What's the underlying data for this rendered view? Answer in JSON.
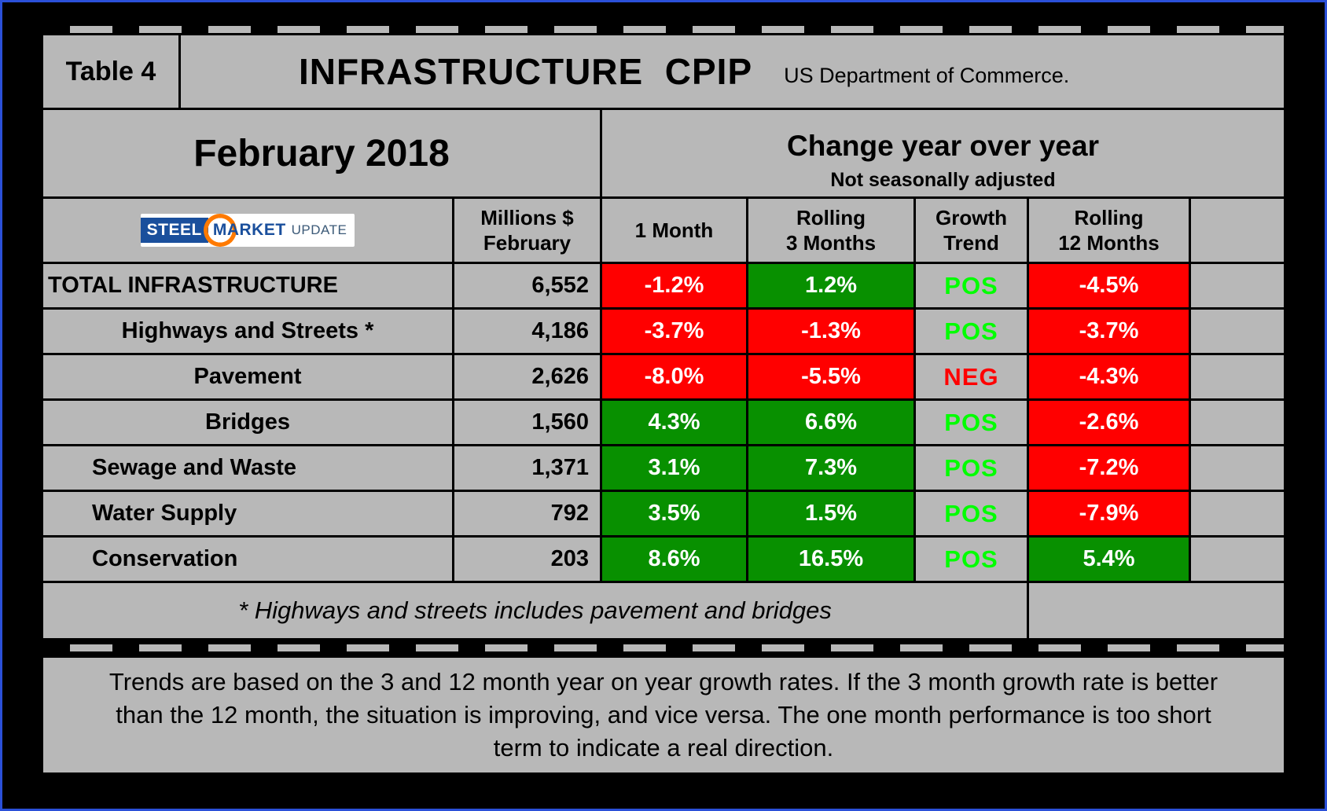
{
  "title_bar": {
    "table_label": "Table 4",
    "title": "INFRASTRUCTURE  CPIP",
    "subtitle": "US Department of Commerce."
  },
  "period": {
    "month": "February 2018",
    "change_header": "Change year over year",
    "change_subheader": "Not seasonally adjusted"
  },
  "logo": {
    "steel": "STEEL",
    "market": "MARKET",
    "update": "UPDATE"
  },
  "headers": {
    "millions": "Millions $\nFebruary",
    "one_month": "1 Month",
    "rolling3": "Rolling\n3 Months",
    "growth": "Growth\nTrend",
    "rolling12": "Rolling\n12 Months"
  },
  "rows": [
    {
      "category": "TOTAL INFRASTRUCTURE",
      "millions": "6,552",
      "one_month": "-1.2%",
      "one_month_tone": "neg",
      "rolling3": "1.2%",
      "rolling3_tone": "pos",
      "trend": "POS",
      "trend_tone": "pos",
      "rolling12": "-4.5%",
      "rolling12_tone": "neg"
    },
    {
      "category": "Highways and Streets *",
      "millions": "4,186",
      "one_month": "-3.7%",
      "one_month_tone": "neg",
      "rolling3": "-1.3%",
      "rolling3_tone": "neg",
      "trend": "POS",
      "trend_tone": "pos",
      "rolling12": "-3.7%",
      "rolling12_tone": "neg"
    },
    {
      "category": "Pavement",
      "millions": "2,626",
      "one_month": "-8.0%",
      "one_month_tone": "neg",
      "rolling3": "-5.5%",
      "rolling3_tone": "neg",
      "trend": "NEG",
      "trend_tone": "neg",
      "rolling12": "-4.3%",
      "rolling12_tone": "neg"
    },
    {
      "category": "Bridges",
      "millions": "1,560",
      "one_month": "4.3%",
      "one_month_tone": "pos",
      "rolling3": "6.6%",
      "rolling3_tone": "pos",
      "trend": "POS",
      "trend_tone": "pos",
      "rolling12": "-2.6%",
      "rolling12_tone": "neg"
    },
    {
      "category": "Sewage and Waste",
      "millions": "1,371",
      "one_month": "3.1%",
      "one_month_tone": "pos",
      "rolling3": "7.3%",
      "rolling3_tone": "pos",
      "trend": "POS",
      "trend_tone": "pos",
      "rolling12": "-7.2%",
      "rolling12_tone": "neg"
    },
    {
      "category": "Water Supply",
      "millions": "792",
      "one_month": "3.5%",
      "one_month_tone": "pos",
      "rolling3": "1.5%",
      "rolling3_tone": "pos",
      "trend": "POS",
      "trend_tone": "pos",
      "rolling12": "-7.9%",
      "rolling12_tone": "neg"
    },
    {
      "category": "Conservation",
      "millions": "203",
      "one_month": "8.6%",
      "one_month_tone": "pos",
      "rolling3": "16.5%",
      "rolling3_tone": "pos",
      "trend": "POS",
      "trend_tone": "pos",
      "rolling12": "5.4%",
      "rolling12_tone": "pos"
    }
  ],
  "footnote": "* Highways and streets includes pavement and bridges",
  "bottom_note": "Trends are based on the 3 and 12 month year on year growth rates. If the 3 month growth rate is better than the 12 month, the situation is improving, and vice versa. The one month performance is too short term to indicate a real direction.",
  "colors": {
    "negative_cell": "#ff0000",
    "positive_cell": "#089000",
    "pos_trend_text": "#00ff00",
    "neg_trend_text": "#ff0000",
    "table_background": "#b8b8b8",
    "page_border": "#2b50d8"
  },
  "chart_data": {
    "type": "table",
    "title": "INFRASTRUCTURE CPIP",
    "subtitle": "US Department of Commerce. February 2018. Change year over year, not seasonally adjusted.",
    "columns": [
      "Millions $ February",
      "1 Month",
      "Rolling 3 Months",
      "Growth Trend",
      "Rolling 12 Months"
    ],
    "rows": [
      {
        "category": "TOTAL INFRASTRUCTURE",
        "millions": 6552,
        "one_month_pct": -1.2,
        "rolling_3m_pct": 1.2,
        "growth_trend": "POS",
        "rolling_12m_pct": -4.5
      },
      {
        "category": "Highways and Streets *",
        "millions": 4186,
        "one_month_pct": -3.7,
        "rolling_3m_pct": -1.3,
        "growth_trend": "POS",
        "rolling_12m_pct": -3.7
      },
      {
        "category": "Pavement",
        "millions": 2626,
        "one_month_pct": -8.0,
        "rolling_3m_pct": -5.5,
        "growth_trend": "NEG",
        "rolling_12m_pct": -4.3
      },
      {
        "category": "Bridges",
        "millions": 1560,
        "one_month_pct": 4.3,
        "rolling_3m_pct": 6.6,
        "growth_trend": "POS",
        "rolling_12m_pct": -2.6
      },
      {
        "category": "Sewage and Waste",
        "millions": 1371,
        "one_month_pct": 3.1,
        "rolling_3m_pct": 7.3,
        "growth_trend": "POS",
        "rolling_12m_pct": -7.2
      },
      {
        "category": "Water Supply",
        "millions": 792,
        "one_month_pct": 3.5,
        "rolling_3m_pct": 1.5,
        "growth_trend": "POS",
        "rolling_12m_pct": -7.9
      },
      {
        "category": "Conservation",
        "millions": 203,
        "one_month_pct": 8.6,
        "rolling_3m_pct": 16.5,
        "growth_trend": "POS",
        "rolling_12m_pct": 5.4
      }
    ]
  }
}
